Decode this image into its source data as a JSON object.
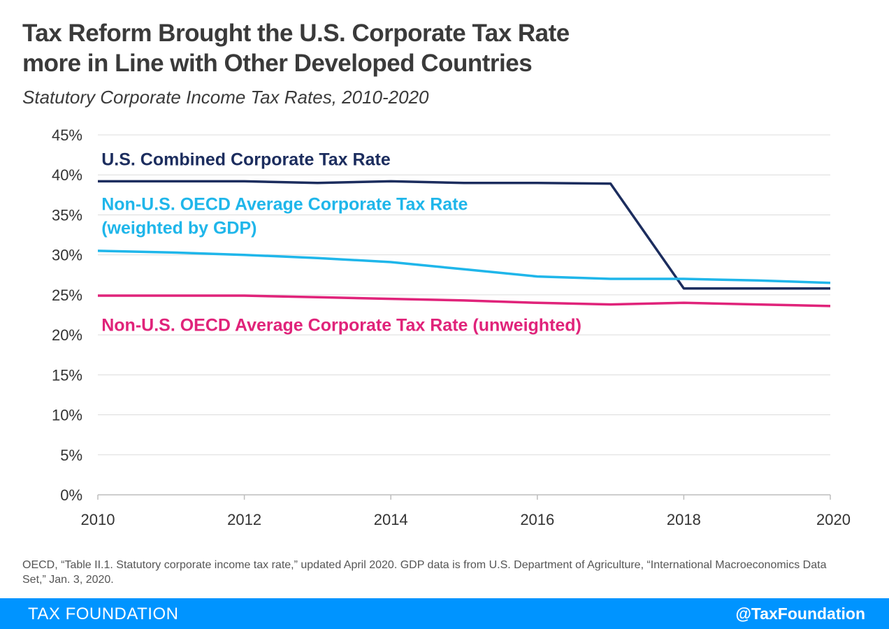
{
  "chart_data": {
    "type": "line",
    "title_lines": [
      "Tax Reform Brought the U.S. Corporate Tax Rate",
      "more in Line with Other Developed Countries"
    ],
    "subtitle": "Statutory Corporate Income Tax Rates, 2010-2020",
    "xlabel": "",
    "ylabel": "",
    "x": [
      2010,
      2011,
      2012,
      2013,
      2014,
      2015,
      2016,
      2017,
      2018,
      2019,
      2020
    ],
    "xlim": [
      2010,
      2020
    ],
    "ylim": [
      0,
      45
    ],
    "x_ticks": [
      {
        "value": 2010,
        "label": "2010"
      },
      {
        "value": 2012,
        "label": "2012"
      },
      {
        "value": 2014,
        "label": "2014"
      },
      {
        "value": 2016,
        "label": "2016"
      },
      {
        "value": 2018,
        "label": "2018"
      },
      {
        "value": 2020,
        "label": "2020"
      }
    ],
    "y_ticks": [
      {
        "value": 0,
        "label": "0%"
      },
      {
        "value": 5,
        "label": "5%"
      },
      {
        "value": 10,
        "label": "10%"
      },
      {
        "value": 15,
        "label": "15%"
      },
      {
        "value": 20,
        "label": "20%"
      },
      {
        "value": 25,
        "label": "25%"
      },
      {
        "value": 30,
        "label": "30%"
      },
      {
        "value": 35,
        "label": "35%"
      },
      {
        "value": 40,
        "label": "40%"
      },
      {
        "value": 45,
        "label": "45%"
      }
    ],
    "grid": true,
    "series": [
      {
        "id": "us-combined",
        "name": "U.S. Combined Corporate Tax Rate",
        "label_lines": [
          "U.S. Combined Corporate Tax Rate"
        ],
        "color": "#1c2d5e",
        "values": [
          39.2,
          39.2,
          39.2,
          39.0,
          39.2,
          39.0,
          39.0,
          38.9,
          25.8,
          25.8,
          25.8
        ]
      },
      {
        "id": "oecd-weighted",
        "name": "Non-U.S. OECD Average Corporate Tax Rate (weighted by GDP)",
        "label_lines": [
          "Non-U.S. OECD Average Corporate Tax Rate",
          "(weighted by GDP)"
        ],
        "color": "#1fb6ea",
        "values": [
          30.5,
          30.3,
          30.0,
          29.6,
          29.1,
          28.2,
          27.3,
          27.0,
          27.0,
          26.8,
          26.5
        ]
      },
      {
        "id": "oecd-unweighted",
        "name": "Non-U.S. OECD Average Corporate Tax Rate (unweighted)",
        "label_lines": [
          "Non-U.S. OECD Average Corporate Tax Rate (unweighted)"
        ],
        "color": "#e0237a",
        "values": [
          24.9,
          24.9,
          24.9,
          24.7,
          24.5,
          24.3,
          24.0,
          23.8,
          24.0,
          23.8,
          23.6
        ]
      }
    ]
  },
  "source": "OECD, “Table II.1. Statutory corporate income tax rate,” updated April 2020. GDP data is from U.S. Department of Agriculture, “International Macroeconomics Data Set,” Jan. 3, 2020.",
  "footer": {
    "brand": "TAX FOUNDATION",
    "handle": "@TaxFoundation",
    "color": "#0094ff"
  }
}
